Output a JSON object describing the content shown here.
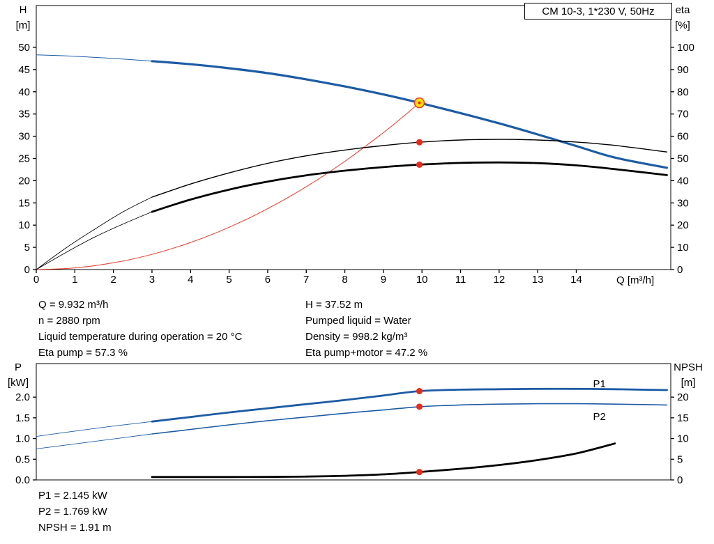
{
  "header": {
    "title_box": "CM 10-3, 1*230 V, 50Hz"
  },
  "axes_labels": {
    "top_left": [
      "H",
      "[m]"
    ],
    "top_right": [
      "eta",
      "[%]"
    ],
    "x": "Q [m³/h]",
    "bottom_left": [
      "P",
      "[kW]"
    ],
    "bottom_right": [
      "NPSH",
      "[m]"
    ]
  },
  "top_info": {
    "left": [
      "Q = 9.932 m³/h",
      "n = 2880 rpm",
      "Liquid temperature during operation = 20 °C",
      "Eta pump = 57.3 %"
    ],
    "right": [
      "H = 37.52 m",
      "Pumped liquid = Water",
      "Density = 998.2 kg/m³",
      "Eta pump+motor = 47.2 %"
    ]
  },
  "bottom_info": [
    "P1 = 2.145 kW",
    "P2 = 1.769 kW",
    "NPSH = 1.91 m"
  ],
  "colors": {
    "curve_blue": "#1d5ba4",
    "system_red": "#e8392b",
    "duty_dot_red": "#ea2a1a",
    "duty_yellow": "#ffdf00",
    "curve_black": "#000000"
  },
  "chart_data": [
    {
      "type": "line",
      "title": "CM 10-3, 1*230 V, 50Hz",
      "xlabel": "Q [m³/h]",
      "ylabel_left": "H [m]",
      "ylabel_right": "eta [%]",
      "xlim": [
        0,
        16.45
      ],
      "ylim_left": [
        0,
        59.4
      ],
      "ylim_right": [
        0,
        118.8
      ],
      "x_ticks": [
        0,
        1,
        2,
        3,
        4,
        5,
        6,
        7,
        8,
        9,
        10,
        11,
        12,
        13,
        14
      ],
      "y_ticks_left": [
        0,
        5,
        10,
        15,
        20,
        25,
        30,
        35,
        40,
        45,
        50
      ],
      "y_left_decimals": 0,
      "y_ticks_right": [
        0,
        10,
        20,
        30,
        40,
        50,
        60,
        70,
        80,
        90,
        100
      ],
      "grid": false,
      "series": [
        {
          "name": "pump-curve-low-flow",
          "axis": "left",
          "color": "#1d5ba4",
          "width": 1,
          "x": [
            0,
            1,
            2,
            3
          ],
          "y": [
            48.3,
            48.0,
            47.5,
            46.9
          ]
        },
        {
          "name": "pump-curve",
          "axis": "left",
          "color": "#1d5ba4",
          "width": 3.2,
          "x": [
            3,
            4,
            5,
            6,
            7,
            8,
            9,
            9.932,
            11,
            12,
            13,
            14,
            15,
            16.35
          ],
          "y": [
            46.9,
            46.2,
            45.3,
            44.2,
            42.8,
            41.2,
            39.4,
            37.52,
            35.2,
            32.9,
            30.4,
            27.8,
            25.2,
            22.9
          ]
        },
        {
          "name": "system-curve",
          "axis": "left",
          "color": "#e8392b",
          "width": 1,
          "x": [
            0,
            1,
            2,
            3,
            4,
            5,
            6,
            7,
            8,
            9,
            9.5,
            9.932
          ],
          "y": [
            0,
            0.38,
            1.52,
            3.42,
            6.09,
            9.51,
            13.7,
            18.64,
            24.35,
            30.81,
            34.33,
            37.52
          ]
        },
        {
          "name": "eta-pump-low-flow",
          "axis": "right",
          "color": "#000000",
          "width": 0.9,
          "x": [
            0,
            0.75,
            1.5,
            2.25,
            3
          ],
          "y": [
            0,
            9.5,
            18,
            26,
            32.6
          ]
        },
        {
          "name": "eta-pump-curve",
          "axis": "right",
          "color": "#000000",
          "width": 1.4,
          "x": [
            3,
            4,
            5,
            6,
            7,
            8,
            9,
            9.932,
            11,
            12,
            13,
            14,
            15,
            16.35
          ],
          "y": [
            32.6,
            38.5,
            43.5,
            47.8,
            51.2,
            53.8,
            55.8,
            57.3,
            58.3,
            58.6,
            58.3,
            57.4,
            55.9,
            52.9
          ]
        },
        {
          "name": "eta-pump-motor-low-flow",
          "axis": "right",
          "color": "#000000",
          "width": 0.9,
          "x": [
            0,
            0.75,
            1.5,
            2.25,
            3
          ],
          "y": [
            0,
            7.5,
            14.5,
            20.5,
            26.0
          ]
        },
        {
          "name": "eta-pump-motor-curve",
          "axis": "right",
          "color": "#000000",
          "width": 2.8,
          "x": [
            3,
            4,
            5,
            6,
            7,
            8,
            9,
            9.932,
            11,
            12,
            13,
            14,
            15,
            16.35
          ],
          "y": [
            26.0,
            31.5,
            36.0,
            39.6,
            42.4,
            44.5,
            46.1,
            47.2,
            48.0,
            48.2,
            47.9,
            46.9,
            45.2,
            42.5
          ]
        }
      ],
      "markers": [
        {
          "name": "duty-point",
          "x": 9.932,
          "y": 37.52,
          "axis": "left",
          "r": 7,
          "fill": "#ffdf00",
          "stroke": "#e8392b",
          "stroke_width": 1.5
        },
        {
          "name": "duty-point-center",
          "x": 9.932,
          "y": 37.52,
          "axis": "left",
          "r": 2,
          "fill": "#ea2a1a"
        },
        {
          "name": "eta-pump-duty",
          "x": 9.932,
          "y": 57.3,
          "axis": "right",
          "r": 4.5,
          "fill": "#ea2a1a"
        },
        {
          "name": "eta-pump-motor-duty",
          "x": 9.932,
          "y": 47.2,
          "axis": "right",
          "r": 4.5,
          "fill": "#ea2a1a"
        }
      ],
      "inline_labels": []
    },
    {
      "type": "line",
      "title": "",
      "xlabel": "",
      "ylabel_left": "P [kW]",
      "ylabel_right": "NPSH [m]",
      "xlim": [
        0,
        16.45
      ],
      "ylim_left": [
        0,
        2.81
      ],
      "ylim_right": [
        0,
        28.1
      ],
      "x_ticks": [],
      "y_ticks_left": [
        0,
        0.5,
        1,
        1.5,
        2
      ],
      "y_left_decimals": 1,
      "y_ticks_right": [
        0,
        5,
        10,
        15,
        20
      ],
      "grid": false,
      "series": [
        {
          "name": "p1-low-flow",
          "axis": "left",
          "color": "#1d5ba4",
          "width": 0.9,
          "x": [
            0,
            1,
            2,
            3
          ],
          "y": [
            1.05,
            1.18,
            1.3,
            1.41
          ]
        },
        {
          "name": "p1-curve",
          "axis": "left",
          "color": "#1d5ba4",
          "width": 2.8,
          "x": [
            3,
            4,
            5,
            6,
            7,
            8,
            9,
            9.932,
            11,
            12,
            13,
            14,
            15,
            16.35
          ],
          "y": [
            1.41,
            1.52,
            1.63,
            1.73,
            1.83,
            1.93,
            2.04,
            2.145,
            2.18,
            2.19,
            2.2,
            2.2,
            2.19,
            2.17
          ]
        },
        {
          "name": "p2-low-flow",
          "axis": "left",
          "color": "#1d5ba4",
          "width": 0.9,
          "x": [
            0,
            1,
            2,
            3
          ],
          "y": [
            0.75,
            0.87,
            0.99,
            1.11
          ]
        },
        {
          "name": "p2-curve",
          "axis": "left",
          "color": "#1d5ba4",
          "width": 1.6,
          "x": [
            3,
            4,
            5,
            6,
            7,
            8,
            9,
            9.932,
            11,
            12,
            13,
            14,
            15,
            16.35
          ],
          "y": [
            1.11,
            1.22,
            1.33,
            1.43,
            1.52,
            1.61,
            1.69,
            1.769,
            1.81,
            1.83,
            1.84,
            1.84,
            1.83,
            1.81
          ]
        },
        {
          "name": "npsh-curve",
          "axis": "right",
          "color": "#000000",
          "width": 2.8,
          "x": [
            3,
            4,
            5,
            6,
            7,
            8,
            9,
            9.932,
            11,
            12,
            13,
            14,
            15
          ],
          "y": [
            0.7,
            0.7,
            0.7,
            0.72,
            0.8,
            1.0,
            1.35,
            1.91,
            2.7,
            3.6,
            4.8,
            6.4,
            8.8
          ]
        }
      ],
      "markers": [
        {
          "name": "p1-duty",
          "x": 9.932,
          "y": 2.145,
          "axis": "left",
          "r": 4.5,
          "fill": "#ea2a1a"
        },
        {
          "name": "p2-duty",
          "x": 9.932,
          "y": 1.769,
          "axis": "left",
          "r": 4.5,
          "fill": "#ea2a1a"
        },
        {
          "name": "npsh-duty",
          "x": 9.932,
          "y": 1.91,
          "axis": "right",
          "r": 4.5,
          "fill": "#ea2a1a"
        }
      ],
      "inline_labels": [
        {
          "text": "P1",
          "x": 14.6,
          "y": 2.24,
          "axis": "left",
          "color": "#1d5ba4"
        },
        {
          "text": "P2",
          "x": 14.6,
          "y": 1.45,
          "axis": "left",
          "color": "#1d5ba4"
        }
      ]
    }
  ]
}
